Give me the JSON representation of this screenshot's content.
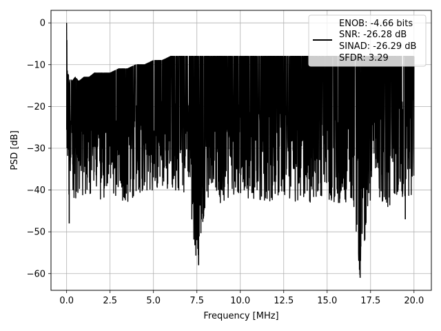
{
  "chart_data": {
    "type": "line",
    "title": "",
    "xlabel": "Frequency [MHz]",
    "ylabel": "PSD [dB]",
    "xlim": [
      -0.9,
      21.0
    ],
    "ylim": [
      -64.0,
      3.0
    ],
    "grid": true,
    "legend_position": "top-right",
    "xticks": [
      0.0,
      2.5,
      5.0,
      7.5,
      10.0,
      12.5,
      15.0,
      17.5,
      20.0
    ],
    "xtick_labels": [
      "0.0",
      "2.5",
      "5.0",
      "7.5",
      "10.0",
      "12.5",
      "15.0",
      "17.5",
      "20.0"
    ],
    "yticks": [
      0,
      -10,
      -20,
      -30,
      -40,
      -50,
      -60
    ],
    "ytick_labels": [
      "0",
      "−10",
      "−20",
      "−30",
      "−40",
      "−50",
      "−60"
    ],
    "series": [
      {
        "legend_lines": [
          "ENOB: -4.66 bits",
          "SNR: -26.28 dB",
          "SINAD: -26.29 dB",
          "SFDR: 3.29"
        ],
        "color": "#000000",
        "note": "dense noise-floor PSD trace",
        "x": [
          0.0,
          0.02,
          0.05,
          0.1,
          0.15,
          0.2,
          0.3,
          0.5,
          0.7,
          1.0,
          1.3,
          1.6,
          2.0,
          2.5,
          3.0,
          3.5,
          4.0,
          4.5,
          5.0,
          5.5,
          6.0,
          6.5,
          7.0,
          7.5,
          8.0,
          8.5,
          9.0,
          9.5,
          10.0,
          10.5,
          11.0,
          11.5,
          12.0,
          12.5,
          13.0,
          13.5,
          14.0,
          14.5,
          15.0,
          15.5,
          16.0,
          16.5,
          16.9,
          17.5,
          18.0,
          18.5,
          19.0,
          19.5,
          20.0
        ],
        "upper": [
          0.0,
          -5,
          -14,
          -12,
          -15,
          -13,
          -14,
          -13,
          -14,
          -13,
          -13,
          -12,
          -12,
          -12,
          -11,
          -11,
          -10,
          -10,
          -9,
          -9,
          -8,
          -8,
          -8,
          -8,
          -8,
          -8,
          -8,
          -8,
          -8,
          -8,
          -8,
          -8,
          -8,
          -8,
          -8,
          -8,
          -8,
          -8,
          -8,
          -8,
          -8,
          -8,
          -8,
          -8,
          -8,
          -8,
          -8,
          -8,
          -8
        ],
        "lower": [
          -29,
          -36,
          -37,
          -48,
          -39,
          -38,
          -39,
          -46,
          -40,
          -42,
          -41,
          -40,
          -43,
          -40,
          -42,
          -43,
          -41,
          -40,
          -40,
          -39,
          -40,
          -40,
          -41,
          -58,
          -43,
          -41,
          -44,
          -41,
          -41,
          -42,
          -42,
          -43,
          -42,
          -41,
          -43,
          -42,
          -43,
          -41,
          -42,
          -43,
          -43,
          -42,
          -61,
          -42,
          -42,
          -44,
          -42,
          -42,
          -41
        ]
      }
    ]
  }
}
